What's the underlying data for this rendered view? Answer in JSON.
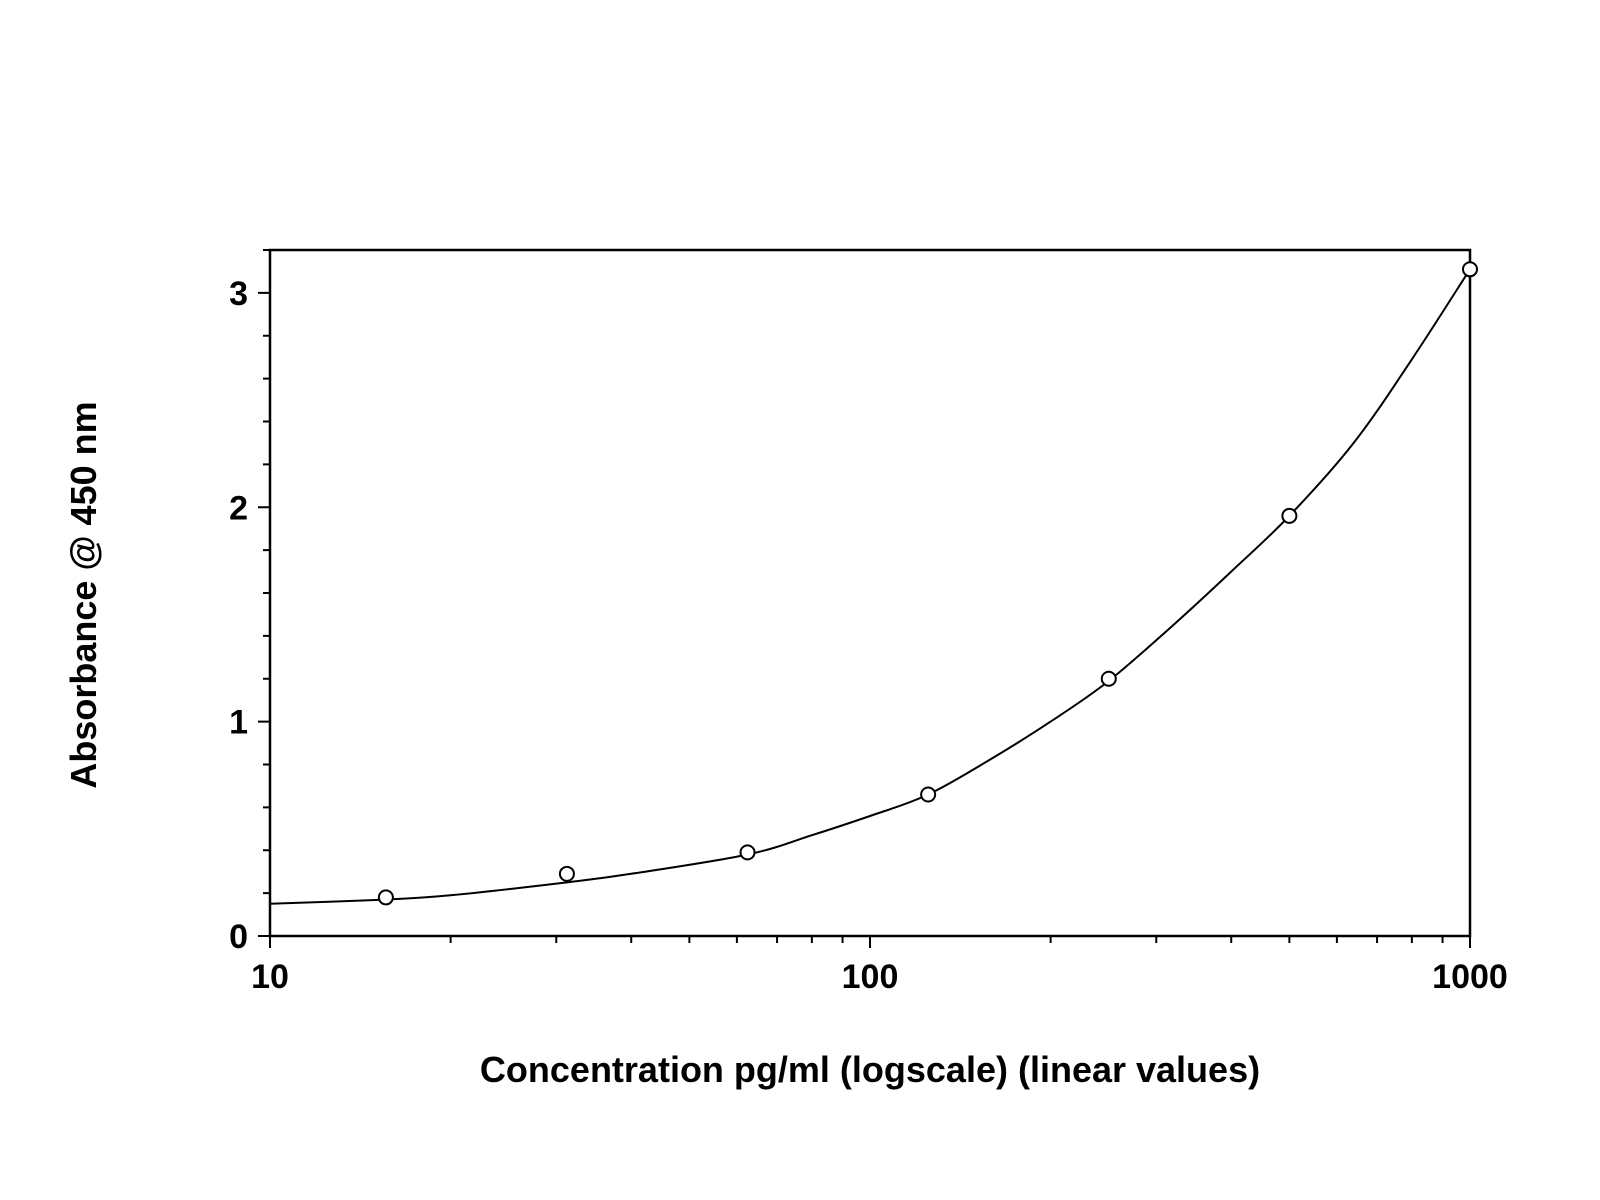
{
  "chart_data": {
    "type": "scatter",
    "title": "",
    "xlabel": "Concentration pg/ml (logscale) (linear values)",
    "ylabel": "Absorbance @ 450 nm",
    "x_scale": "log",
    "xlim": [
      10,
      1000
    ],
    "ylim": [
      0,
      3.2
    ],
    "x_ticks": [
      "10",
      "100",
      "1000"
    ],
    "y_ticks": [
      "0",
      "1",
      "2",
      "3"
    ],
    "grid": false,
    "legend": "none",
    "series": [
      {
        "marker": "open-circle",
        "x": [
          15.6,
          31.25,
          62.5,
          125,
          250,
          500,
          1000
        ],
        "y": [
          0.18,
          0.29,
          0.39,
          0.66,
          1.2,
          1.96,
          3.11
        ]
      }
    ],
    "fit_curve": {
      "x": [
        10,
        15.6,
        20,
        31.25,
        40,
        62.5,
        80,
        100,
        125,
        160,
        200,
        250,
        320,
        400,
        500,
        640,
        800,
        1000
      ],
      "y": [
        0.15,
        0.17,
        0.19,
        0.25,
        0.29,
        0.38,
        0.47,
        0.56,
        0.66,
        0.83,
        1.0,
        1.19,
        1.45,
        1.7,
        1.96,
        2.3,
        2.69,
        3.11
      ]
    },
    "colors": {
      "line": "#000000",
      "marker": "#000000",
      "background": "#ffffff"
    }
  }
}
